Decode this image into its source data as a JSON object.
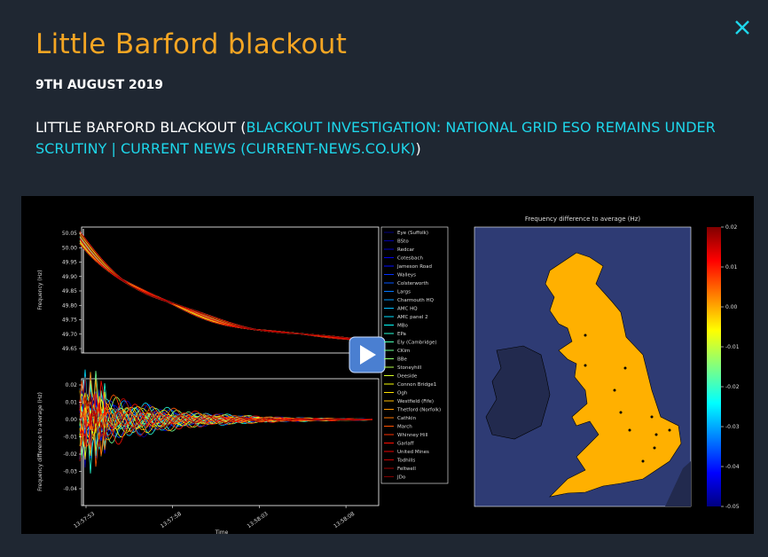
{
  "header": {
    "title": "Little Barford blackout",
    "date": "9TH AUGUST 2019"
  },
  "description": {
    "text_before": "LITTLE BARFORD BLACKOUT (",
    "link": "BLACKOUT INVESTIGATION: NATIONAL GRID ESO REMAINS UNDER SCRUTINY | CURRENT NEWS (CURRENT-NEWS.CO.UK)",
    "text_after": ")"
  },
  "video": {
    "top_chart": {
      "ylabel": "Frequency (Hz)",
      "yticks": [
        "50.05",
        "50.00",
        "49.95",
        "49.90",
        "49.85",
        "49.80",
        "49.75",
        "49.70",
        "49.65"
      ]
    },
    "bottom_chart": {
      "ylabel": "Frequency difference to average (Hz)",
      "yticks": [
        "0.02",
        "0.01",
        "0.00",
        "-0.01",
        "-0.02",
        "-0.03",
        "-0.04"
      ]
    },
    "xticks": [
      "13:57:53",
      "13:57:58",
      "13:58:03",
      "13:58:08"
    ],
    "xlabel": "Time",
    "legend": [
      "Eye (Suffolk)",
      "BSto",
      "Redcar",
      "Cotesbach",
      "Jameson Road",
      "Walleys",
      "Colsterworth",
      "Largs",
      "Charmouth HQ",
      "AMC HQ",
      "AMC panel 2",
      "MBo",
      "EPa",
      "Ely (Cambridge)",
      "CKim",
      "BBe",
      "Stoneyhill",
      "Deeside",
      "Connon Bridge1",
      "Ogh",
      "Westfield (Fife)",
      "Thetford (Norfolk)",
      "Cathkin",
      "March",
      "Whinney Hill",
      "Garlaff",
      "United Mines",
      "Todhills",
      "Feltwell",
      "JDo"
    ],
    "map": {
      "title": "Frequency difference to average (Hz)",
      "colorbar_ticks": [
        "0.02",
        "0.01",
        "0.00",
        "-0.01",
        "-0.02",
        "-0.03",
        "-0.04",
        "-0.05"
      ]
    }
  }
}
